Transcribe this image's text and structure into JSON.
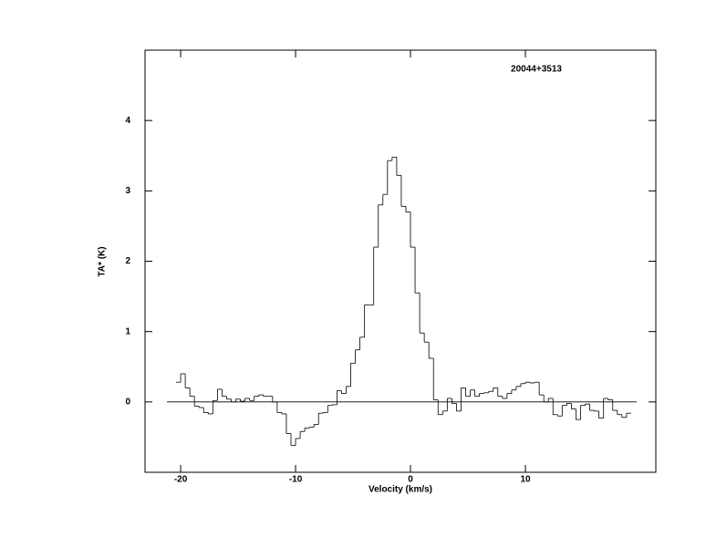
{
  "chart_data": {
    "type": "step",
    "annotation": "20044+3513",
    "x_label": "Velocity (km/s)",
    "y_label": "TA* (K)",
    "color": "#000000",
    "xlim": [
      -23.1,
      21.35
    ],
    "ylim": [
      -1,
      5
    ],
    "xticks": [
      -20,
      -10,
      0,
      10
    ],
    "yticks": [
      0,
      1,
      2,
      3,
      4
    ],
    "x": [
      -20.2,
      -19.8,
      -19.4,
      -19.0,
      -18.6,
      -18.2,
      -17.8,
      -17.4,
      -17.0,
      -16.6,
      -16.2,
      -15.8,
      -15.4,
      -15.0,
      -14.6,
      -14.2,
      -13.8,
      -13.4,
      -13.0,
      -12.6,
      -12.2,
      -11.8,
      -11.4,
      -11.0,
      -10.6,
      -10.2,
      -9.8,
      -9.4,
      -9.0,
      -8.6,
      -8.2,
      -7.8,
      -7.4,
      -7.0,
      -6.6,
      -6.2,
      -5.8,
      -5.4,
      -5.0,
      -4.6,
      -4.2,
      -3.8,
      -3.4,
      -3.0,
      -2.6,
      -2.2,
      -1.8,
      -1.4,
      -1.0,
      -0.6,
      -0.2,
      0.2,
      0.6,
      1.0,
      1.4,
      1.8,
      2.2,
      2.6,
      3.0,
      3.4,
      3.8,
      4.2,
      4.6,
      5.0,
      5.4,
      5.8,
      6.2,
      6.6,
      7.0,
      7.4,
      7.8,
      8.2,
      8.6,
      9.0,
      9.4,
      9.8,
      10.2,
      10.6,
      11.0,
      11.4,
      11.8,
      12.2,
      12.6,
      13.0,
      13.4,
      13.8,
      14.2,
      14.6,
      15.0,
      15.4,
      15.8,
      16.2,
      16.6,
      17.0,
      17.4,
      17.8,
      18.2,
      18.6,
      19.0
    ],
    "values": [
      0.28,
      0.4,
      0.2,
      0.08,
      -0.06,
      -0.08,
      -0.15,
      -0.17,
      0.02,
      0.18,
      0.08,
      0.04,
      0.0,
      0.04,
      0.01,
      0.05,
      0.02,
      0.08,
      0.1,
      0.08,
      0.08,
      0.0,
      -0.15,
      -0.17,
      -0.45,
      -0.62,
      -0.52,
      -0.42,
      -0.37,
      -0.36,
      -0.32,
      -0.16,
      -0.15,
      -0.05,
      -0.04,
      0.16,
      0.12,
      0.22,
      0.55,
      0.74,
      0.92,
      1.38,
      1.38,
      2.2,
      2.8,
      2.95,
      3.43,
      3.48,
      3.22,
      2.78,
      2.7,
      2.2,
      1.55,
      0.98,
      0.85,
      0.62,
      0.03,
      -0.18,
      -0.13,
      0.05,
      -0.02,
      -0.13,
      0.2,
      0.08,
      0.17,
      0.08,
      0.12,
      0.13,
      0.15,
      0.2,
      0.08,
      0.05,
      0.12,
      0.17,
      0.22,
      0.26,
      0.28,
      0.27,
      0.28,
      0.1,
      0.0,
      0.05,
      -0.18,
      -0.2,
      -0.05,
      -0.02,
      -0.1,
      -0.25,
      -0.05,
      -0.03,
      -0.12,
      -0.13,
      -0.23,
      0.05,
      0.03,
      -0.12,
      -0.18,
      -0.22,
      -0.16
    ]
  }
}
